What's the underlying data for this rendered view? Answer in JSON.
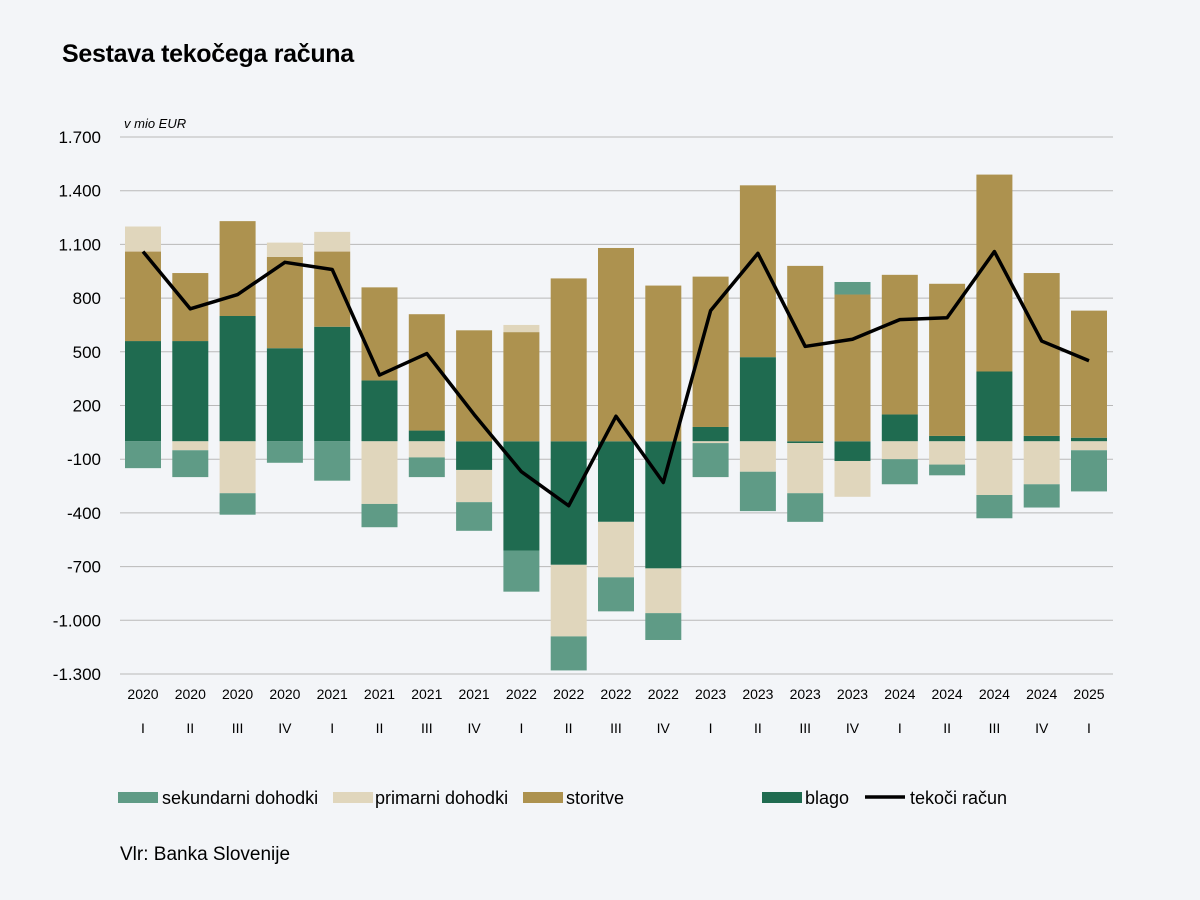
{
  "chart_data": {
    "type": "bar",
    "stacked": true,
    "title": "Sestava tekočega računa",
    "unit_label": "v mio EUR",
    "ylim": [
      -1300,
      1700
    ],
    "yticks": [
      1700,
      1400,
      1100,
      800,
      500,
      200,
      -100,
      -400,
      -700,
      -1000,
      -1300
    ],
    "ytick_labels": [
      "1.700",
      "1.400",
      "1.100",
      "800",
      "500",
      "200",
      "-100",
      "-400",
      "-700",
      "-1.000",
      "-1.300"
    ],
    "categories_year": [
      "2020",
      "2020",
      "2020",
      "2020",
      "2021",
      "2021",
      "2021",
      "2021",
      "2022",
      "2022",
      "2022",
      "2022",
      "2023",
      "2023",
      "2023",
      "2023",
      "2024",
      "2024",
      "2024",
      "2024",
      "2025"
    ],
    "categories_quarter": [
      "I",
      "II",
      "III",
      "IV",
      "I",
      "II",
      "III",
      "IV",
      "I",
      "II",
      "III",
      "IV",
      "I",
      "II",
      "III",
      "IV",
      "I",
      "II",
      "III",
      "IV",
      "I"
    ],
    "series": [
      {
        "name": "blago",
        "color": "#1f6b50",
        "values": [
          560,
          560,
          700,
          520,
          640,
          340,
          60,
          -160,
          -610,
          -690,
          -450,
          -710,
          80,
          470,
          -10,
          -110,
          150,
          30,
          390,
          30,
          20
        ]
      },
      {
        "name": "storitve",
        "color": "#ad924f",
        "values": [
          500,
          380,
          530,
          510,
          420,
          520,
          650,
          620,
          610,
          910,
          1080,
          870,
          840,
          960,
          980,
          820,
          780,
          850,
          1100,
          910,
          710
        ]
      },
      {
        "name": "primarni dohodki",
        "color": "#e0d6bc",
        "values": [
          140,
          -50,
          -290,
          80,
          110,
          -350,
          -90,
          -180,
          40,
          -400,
          -310,
          -250,
          -10,
          -170,
          -280,
          -200,
          -100,
          -130,
          -300,
          -240,
          -50
        ]
      },
      {
        "name": "sekundarni dohodki",
        "color": "#5f9b86",
        "values": [
          -150,
          -150,
          -120,
          -120,
          -220,
          -130,
          -110,
          -160,
          -230,
          -190,
          -190,
          -150,
          -190,
          -220,
          -160,
          70,
          -140,
          -60,
          -130,
          -130,
          -230
        ]
      }
    ],
    "line": {
      "name": "tekoči račun",
      "color": "#000000",
      "values": [
        1060,
        740,
        820,
        1000,
        960,
        370,
        490,
        150,
        -170,
        -360,
        140,
        -230,
        730,
        1050,
        530,
        570,
        680,
        690,
        1060,
        560,
        450
      ]
    },
    "legend": {
      "placement": "bottom",
      "items": [
        "sekundarni dohodki",
        "primarni dohodki",
        "storitve",
        "blago",
        "tekoči račun"
      ]
    }
  },
  "source": "Vlr: Banka Slovenije"
}
